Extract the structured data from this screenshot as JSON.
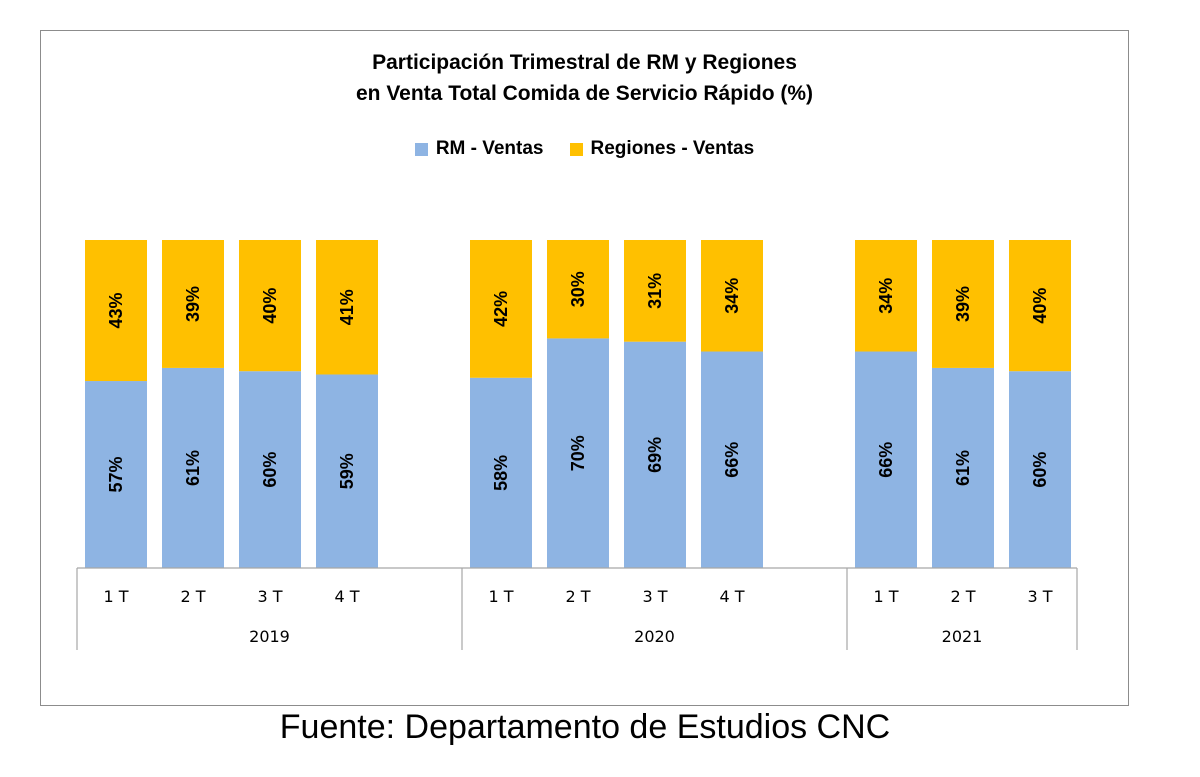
{
  "chart_data": {
    "type": "bar",
    "stacked": true,
    "percent_stacked": true,
    "title": [
      "Participación Trimestral de RM y Regiones",
      "en Venta Total Comida de Servicio Rápido (%)"
    ],
    "categories": [
      {
        "quarter": "1 T",
        "year": "2019"
      },
      {
        "quarter": "2 T",
        "year": "2019"
      },
      {
        "quarter": "3 T",
        "year": "2019"
      },
      {
        "quarter": "4 T",
        "year": "2019"
      },
      {
        "quarter": "1 T",
        "year": "2020"
      },
      {
        "quarter": "2 T",
        "year": "2020"
      },
      {
        "quarter": "3 T",
        "year": "2020"
      },
      {
        "quarter": "4 T",
        "year": "2020"
      },
      {
        "quarter": "1 T",
        "year": "2021"
      },
      {
        "quarter": "2 T",
        "year": "2021"
      },
      {
        "quarter": "3 T",
        "year": "2021"
      }
    ],
    "years": [
      "2019",
      "2020",
      "2021"
    ],
    "series": [
      {
        "name": "RM - Ventas",
        "color": "#8EB4E3",
        "values": [
          57,
          61,
          60,
          59,
          58,
          70,
          69,
          66,
          66,
          61,
          60
        ],
        "labels": [
          "57%",
          "61%",
          "60%",
          "59%",
          "58%",
          "70%",
          "69%",
          "66%",
          "66%",
          "61%",
          "60%"
        ]
      },
      {
        "name": "Regiones - Ventas",
        "color": "#FFC000",
        "values": [
          43,
          39,
          40,
          41,
          42,
          30,
          31,
          34,
          34,
          39,
          40
        ],
        "labels": [
          "43%",
          "39%",
          "40%",
          "41%",
          "42%",
          "30%",
          "31%",
          "34%",
          "34%",
          "39%",
          "40%"
        ]
      }
    ],
    "ylim": [
      0,
      100
    ],
    "legend_position": "top-center",
    "grid": false
  },
  "source": "Fuente: Departamento de Estudios CNC"
}
